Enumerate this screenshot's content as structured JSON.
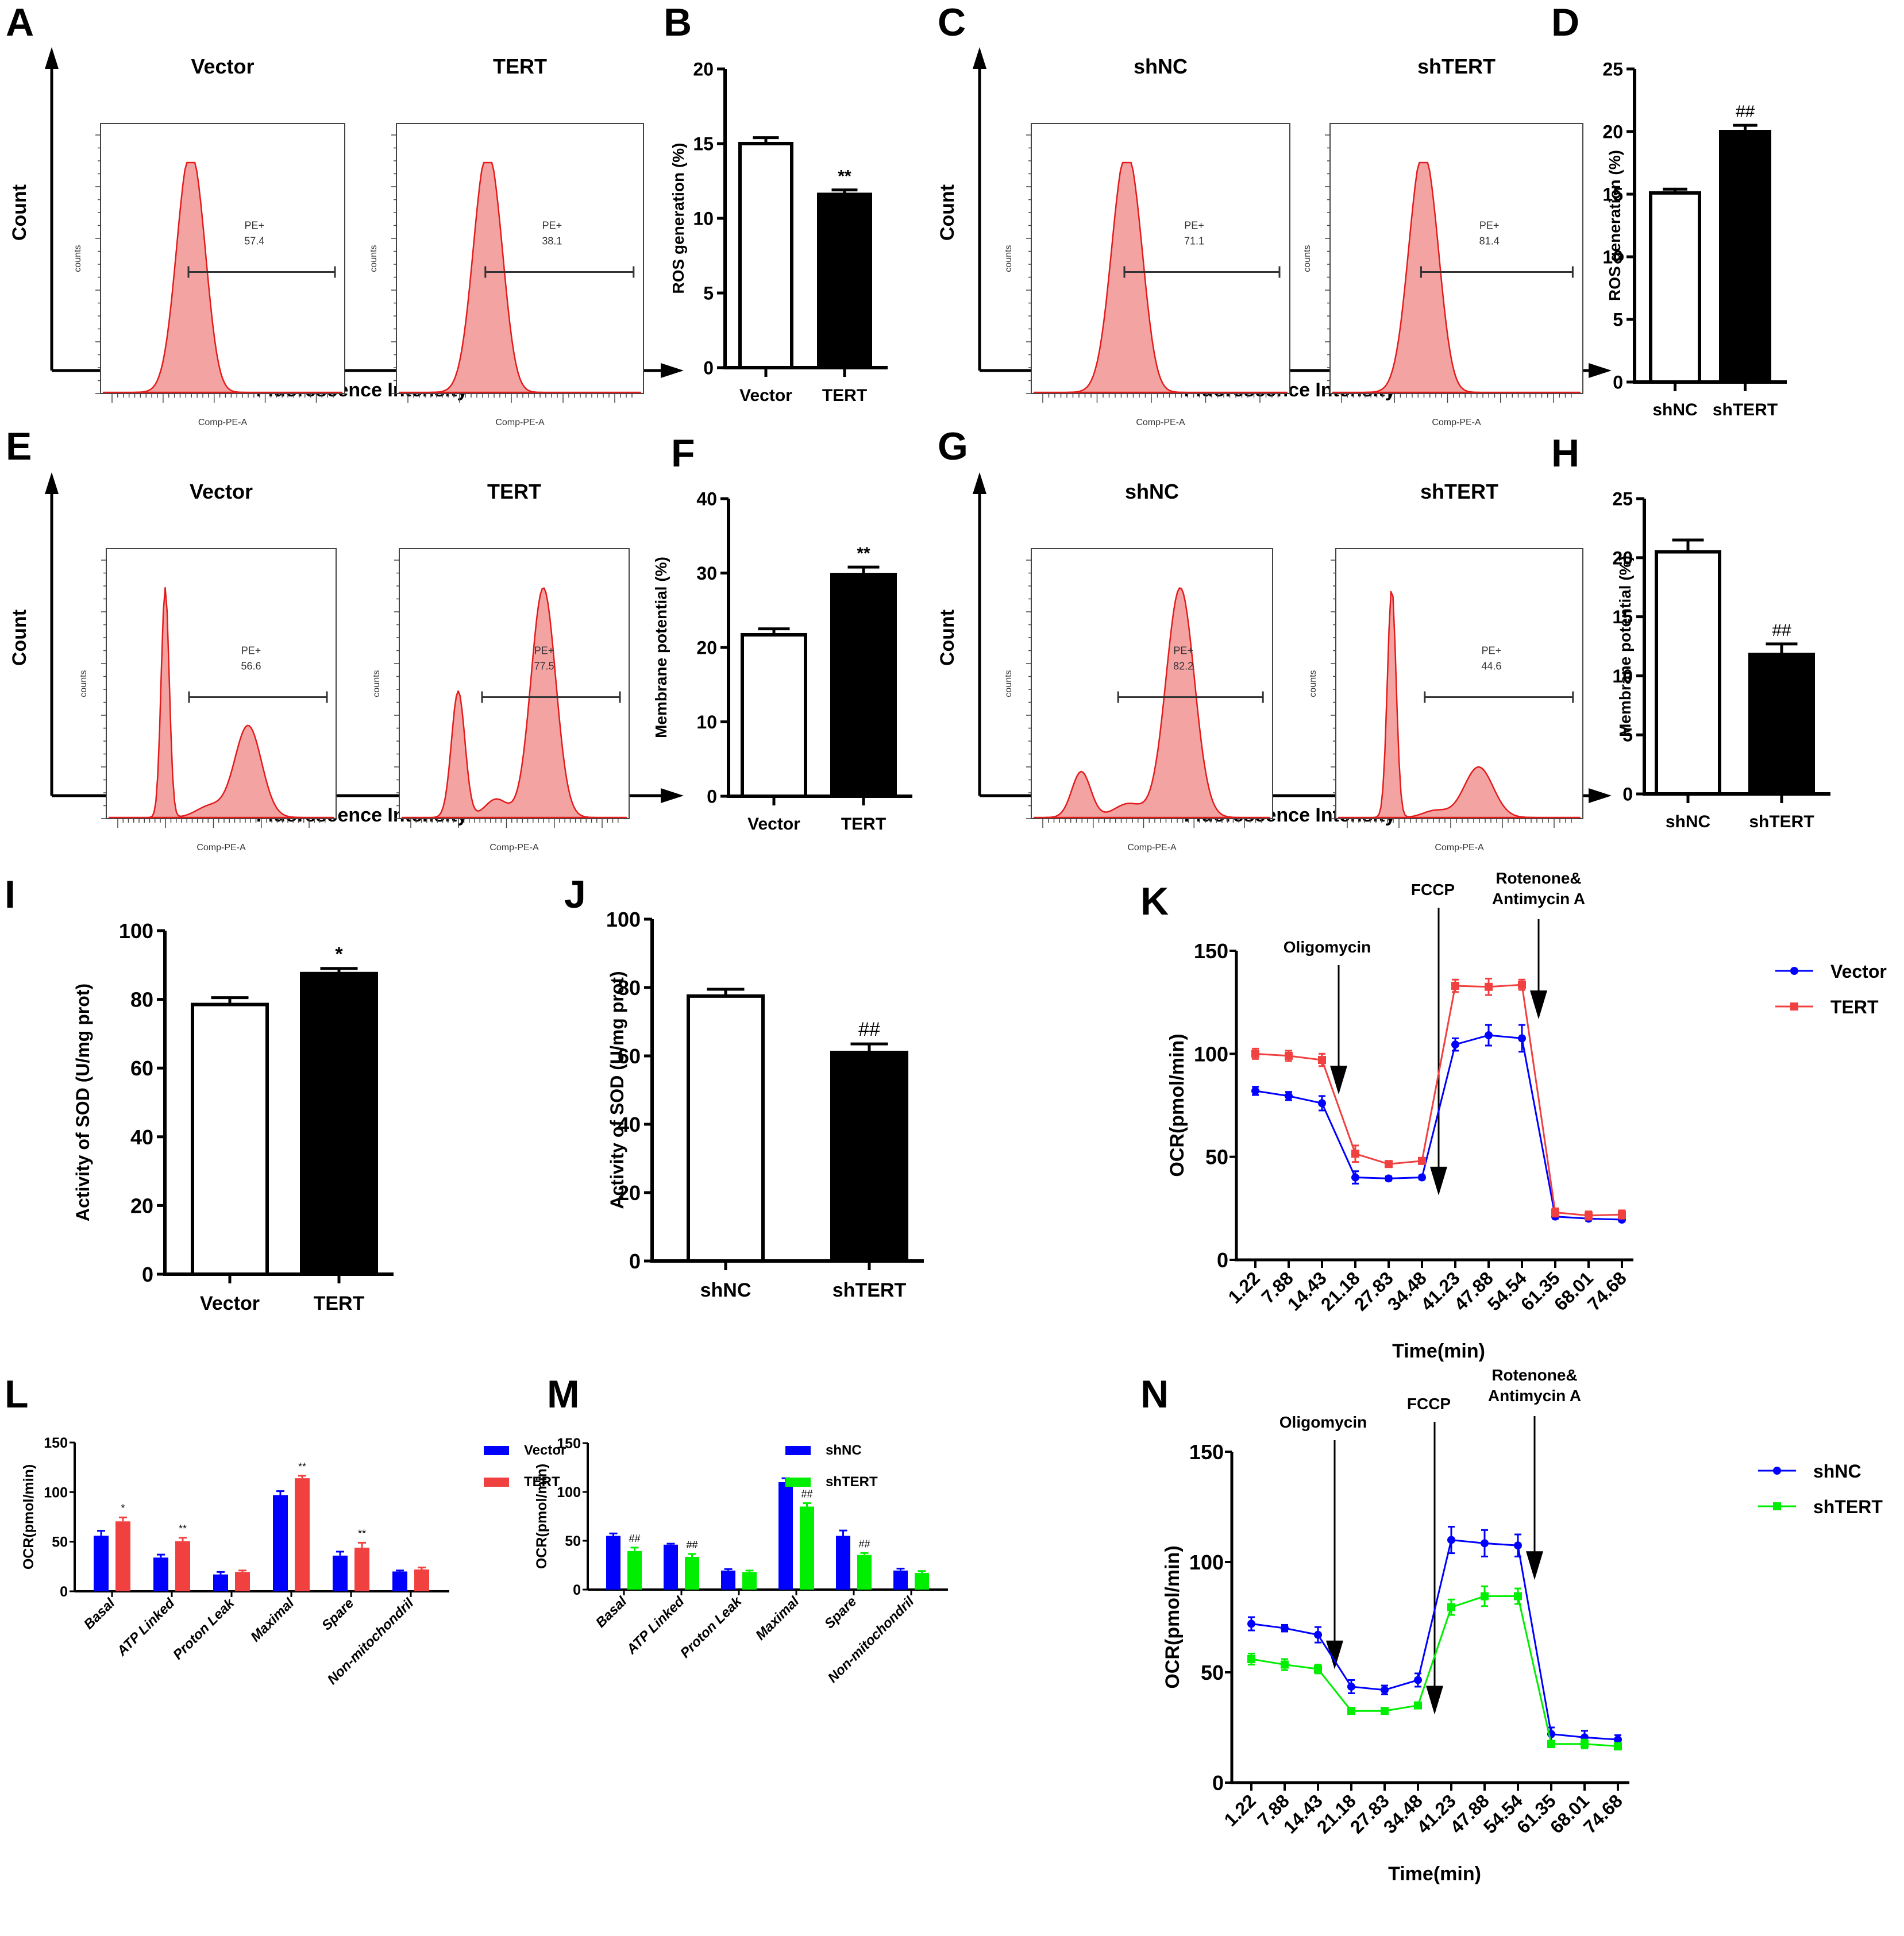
{
  "colors": {
    "histogram_fill": "#f4a3a3",
    "histogram_edge": "#e31b1b",
    "bar_control": "#ffffff",
    "bar_treatment": "#000000",
    "blue": "#0000ff",
    "red": "#f04040",
    "green": "#00ee00"
  },
  "flow_panels": [
    {
      "panel": "A",
      "axis_x_label": "Fluorescence Intensity",
      "axis_y_label": "Count",
      "histograms": [
        {
          "title": "Vector",
          "gate_label": "PE+",
          "gate_value": "57.4",
          "x_label": "Comp-PE-A",
          "y_label": "counts",
          "shape": "unimodal"
        },
        {
          "title": "TERT",
          "gate_label": "PE+",
          "gate_value": "38.1",
          "x_label": "Comp-PE-A",
          "y_label": "counts",
          "shape": "unimodal"
        }
      ]
    },
    {
      "panel": "C",
      "axis_x_label": "Fluorescence Intensity",
      "axis_y_label": "Count",
      "histograms": [
        {
          "title": "shNC",
          "gate_label": "PE+",
          "gate_value": "71.1",
          "x_label": "Comp-PE-A",
          "y_label": "counts",
          "shape": "unimodal"
        },
        {
          "title": "shTERT",
          "gate_label": "PE+",
          "gate_value": "81.4",
          "x_label": "Comp-PE-A",
          "y_label": "counts",
          "shape": "unimodal"
        }
      ]
    },
    {
      "panel": "E",
      "axis_x_label": "Fluorescence Intensity",
      "axis_y_label": "Count",
      "histograms": [
        {
          "title": "Vector",
          "gate_label": "PE+",
          "gate_value": "56.6",
          "x_label": "Comp-PE-A",
          "y_label": "counts",
          "shape": "bimodal-low-second"
        },
        {
          "title": "TERT",
          "gate_label": "PE+",
          "gate_value": "77.5",
          "x_label": "Comp-PE-A",
          "y_label": "counts",
          "shape": "bimodal-high-second"
        }
      ]
    },
    {
      "panel": "G",
      "axis_x_label": "Fluorescence Intensity",
      "axis_y_label": "Count",
      "histograms": [
        {
          "title": "shNC",
          "gate_label": "PE+",
          "gate_value": "82.2",
          "x_label": "Comp-PE-A",
          "y_label": "counts",
          "shape": "bimodal-high-second-small-first"
        },
        {
          "title": "shTERT",
          "gate_label": "PE+",
          "gate_value": "44.6",
          "x_label": "Comp-PE-A",
          "y_label": "counts",
          "shape": "bimodal-tall-first"
        }
      ]
    }
  ],
  "chart_data": [
    {
      "panel": "B",
      "type": "bar",
      "ylabel": "ROS generation (%)",
      "xlabel": "",
      "categories": [
        "Vector",
        "TERT"
      ],
      "values": [
        15.0,
        11.6
      ],
      "errors": [
        0.4,
        0.3
      ],
      "annotations": [
        "",
        "**"
      ],
      "ylim": [
        0,
        20
      ],
      "yticks": [
        0,
        5,
        10,
        15,
        20
      ]
    },
    {
      "panel": "D",
      "type": "bar",
      "ylabel": "ROS generation (%)",
      "xlabel": "",
      "categories": [
        "shNC",
        "shTERT"
      ],
      "values": [
        15.1,
        20.0
      ],
      "errors": [
        0.3,
        0.5
      ],
      "annotations": [
        "",
        "##"
      ],
      "ylim": [
        0,
        25
      ],
      "yticks": [
        0,
        5,
        10,
        15,
        20,
        25
      ]
    },
    {
      "panel": "F",
      "type": "bar",
      "ylabel": "Membrane potential (%)",
      "xlabel": "",
      "categories": [
        "Vector",
        "TERT"
      ],
      "values": [
        21.7,
        29.8
      ],
      "errors": [
        0.8,
        1.0
      ],
      "annotations": [
        "",
        "**"
      ],
      "ylim": [
        0,
        40
      ],
      "yticks": [
        0,
        10,
        20,
        30,
        40
      ]
    },
    {
      "panel": "H",
      "type": "bar",
      "ylabel": "Membrane potential (%)",
      "xlabel": "",
      "categories": [
        "shNC",
        "shTERT"
      ],
      "values": [
        20.5,
        11.8
      ],
      "errors": [
        1.0,
        0.9
      ],
      "annotations": [
        "",
        "##"
      ],
      "ylim": [
        0,
        25
      ],
      "yticks": [
        0,
        5,
        10,
        15,
        20,
        25
      ]
    },
    {
      "panel": "I",
      "type": "bar",
      "ylabel": "Activity of SOD (U/mg prot)",
      "xlabel": "",
      "categories": [
        "Vector",
        "TERT"
      ],
      "values": [
        78.5,
        87.5
      ],
      "errors": [
        2.0,
        1.5
      ],
      "annotations": [
        "",
        "*"
      ],
      "ylim": [
        0,
        100
      ],
      "yticks": [
        0,
        20,
        40,
        60,
        80,
        100
      ]
    },
    {
      "panel": "J",
      "type": "bar",
      "ylabel": "Activity of SOD (U/mg prot)",
      "xlabel": "",
      "categories": [
        "shNC",
        "shTERT"
      ],
      "values": [
        77.5,
        61.0
      ],
      "errors": [
        2.0,
        2.5
      ],
      "annotations": [
        "",
        "##"
      ],
      "ylim": [
        0,
        100
      ],
      "yticks": [
        0,
        20,
        40,
        60,
        80,
        100
      ]
    },
    {
      "panel": "K",
      "type": "line",
      "ylabel": "OCR(pmol/min)",
      "xlabel": "Time(min)",
      "x": [
        "1.22",
        "7.88",
        "14.43",
        "21.18",
        "27.83",
        "34.48",
        "41.23",
        "47.88",
        "54.54",
        "61.35",
        "68.01",
        "74.68"
      ],
      "ylim": [
        0,
        150
      ],
      "yticks": [
        0,
        50,
        100,
        150
      ],
      "legend": "top-right",
      "injections": [
        {
          "label": "Oligomycin",
          "after_index": 2
        },
        {
          "label": "FCCP",
          "after_index": 5
        },
        {
          "label": "Rotenone& Antimycin A",
          "label_line1": "Rotenone&",
          "label_line2": "Antimycin A",
          "after_index": 8
        }
      ],
      "series": [
        {
          "name": "Vector",
          "color": "#0000ff",
          "marker": "circle",
          "values": [
            82,
            79.5,
            76,
            40,
            39.5,
            40,
            104.5,
            109,
            107.5,
            21,
            20,
            19.5
          ],
          "errors": [
            2,
            2,
            3.5,
            3,
            1,
            1,
            3,
            5,
            6.5,
            1,
            1,
            1
          ]
        },
        {
          "name": "TERT",
          "color": "#f04040",
          "marker": "square",
          "values": [
            100,
            99,
            97,
            51.5,
            46.5,
            48,
            133,
            132.5,
            133.5,
            23,
            21.5,
            22
          ],
          "errors": [
            2.5,
            2.5,
            3,
            4,
            1,
            1,
            3,
            4,
            2.5,
            2,
            2,
            2
          ]
        }
      ]
    },
    {
      "panel": "L",
      "type": "bar",
      "ylabel": "OCR(pmol/min)",
      "xlabel": "",
      "categories": [
        "Basal",
        "ATP Linked",
        "Proton Leak",
        "Maximal",
        "Spare",
        "Non-mitochondril"
      ],
      "ylim": [
        0,
        150
      ],
      "yticks": [
        0,
        50,
        100,
        150
      ],
      "legend": "top-right",
      "annotations": [
        "*",
        "**",
        "",
        "**",
        "**",
        ""
      ],
      "series": [
        {
          "name": "Vector",
          "color": "#0000ff",
          "values": [
            56,
            34,
            17,
            97,
            36,
            20
          ],
          "errors": [
            5,
            3,
            2.5,
            4,
            4,
            1
          ]
        },
        {
          "name": "TERT",
          "color": "#f04040",
          "values": [
            70.5,
            50.5,
            19.5,
            114,
            44,
            22
          ],
          "errors": [
            4,
            3.5,
            1.5,
            2.5,
            5,
            2
          ]
        }
      ]
    },
    {
      "panel": "M",
      "type": "bar",
      "ylabel": "OCR(pmol/min)",
      "xlabel": "",
      "categories": [
        "Basal",
        "ATP Linked",
        "Proton Leak",
        "Maximal",
        "Spare",
        "Non-mitochondril"
      ],
      "ylim": [
        0,
        150
      ],
      "yticks": [
        0,
        50,
        100,
        150
      ],
      "legend": "top-right",
      "annotations": [
        "##",
        "##",
        "",
        "##",
        "##",
        ""
      ],
      "series": [
        {
          "name": "shNC",
          "color": "#0000ff",
          "values": [
            55,
            46,
            19.5,
            110,
            55,
            19.5
          ],
          "errors": [
            2.5,
            1,
            1.5,
            4,
            5.5,
            2
          ]
        },
        {
          "name": "shTERT",
          "color": "#00ee00",
          "values": [
            39.5,
            33.5,
            18,
            85,
            35.5,
            17
          ],
          "errors": [
            3.5,
            3,
            1.5,
            3.5,
            2,
            2
          ]
        }
      ]
    },
    {
      "panel": "N",
      "type": "line",
      "ylabel": "OCR(pmol/min)",
      "xlabel": "Time(min)",
      "x": [
        "1.22",
        "7.88",
        "14.43",
        "21.18",
        "27.83",
        "34.48",
        "41.23",
        "47.88",
        "54.54",
        "61.35",
        "68.01",
        "74.68"
      ],
      "ylim": [
        0,
        150
      ],
      "yticks": [
        0,
        50,
        100,
        150
      ],
      "legend": "top-right",
      "injections": [
        {
          "label": "Oligomycin",
          "after_index": 2
        },
        {
          "label": "FCCP",
          "after_index": 5
        },
        {
          "label": "Rotenone& Antimycin A",
          "label_line1": "Rotenone&",
          "label_line2": "Antimycin A",
          "after_index": 8
        }
      ],
      "series": [
        {
          "name": "shNC",
          "color": "#0000ff",
          "marker": "circle",
          "values": [
            72,
            70,
            67,
            43.5,
            42,
            46.5,
            110,
            108.5,
            107.5,
            22,
            20.5,
            19.5
          ],
          "errors": [
            3,
            1.5,
            3.5,
            3,
            2,
            3,
            6,
            6,
            5,
            3,
            3,
            2
          ]
        },
        {
          "name": "shTERT",
          "color": "#00ee00",
          "marker": "square",
          "values": [
            56,
            53.5,
            51.5,
            32.5,
            32.5,
            35,
            79.5,
            84.5,
            84.5,
            17.5,
            17.5,
            16.5
          ],
          "errors": [
            2.5,
            2.5,
            2,
            1,
            1,
            1,
            3.5,
            4.5,
            3.5,
            1.5,
            2,
            1.5
          ]
        }
      ]
    }
  ]
}
